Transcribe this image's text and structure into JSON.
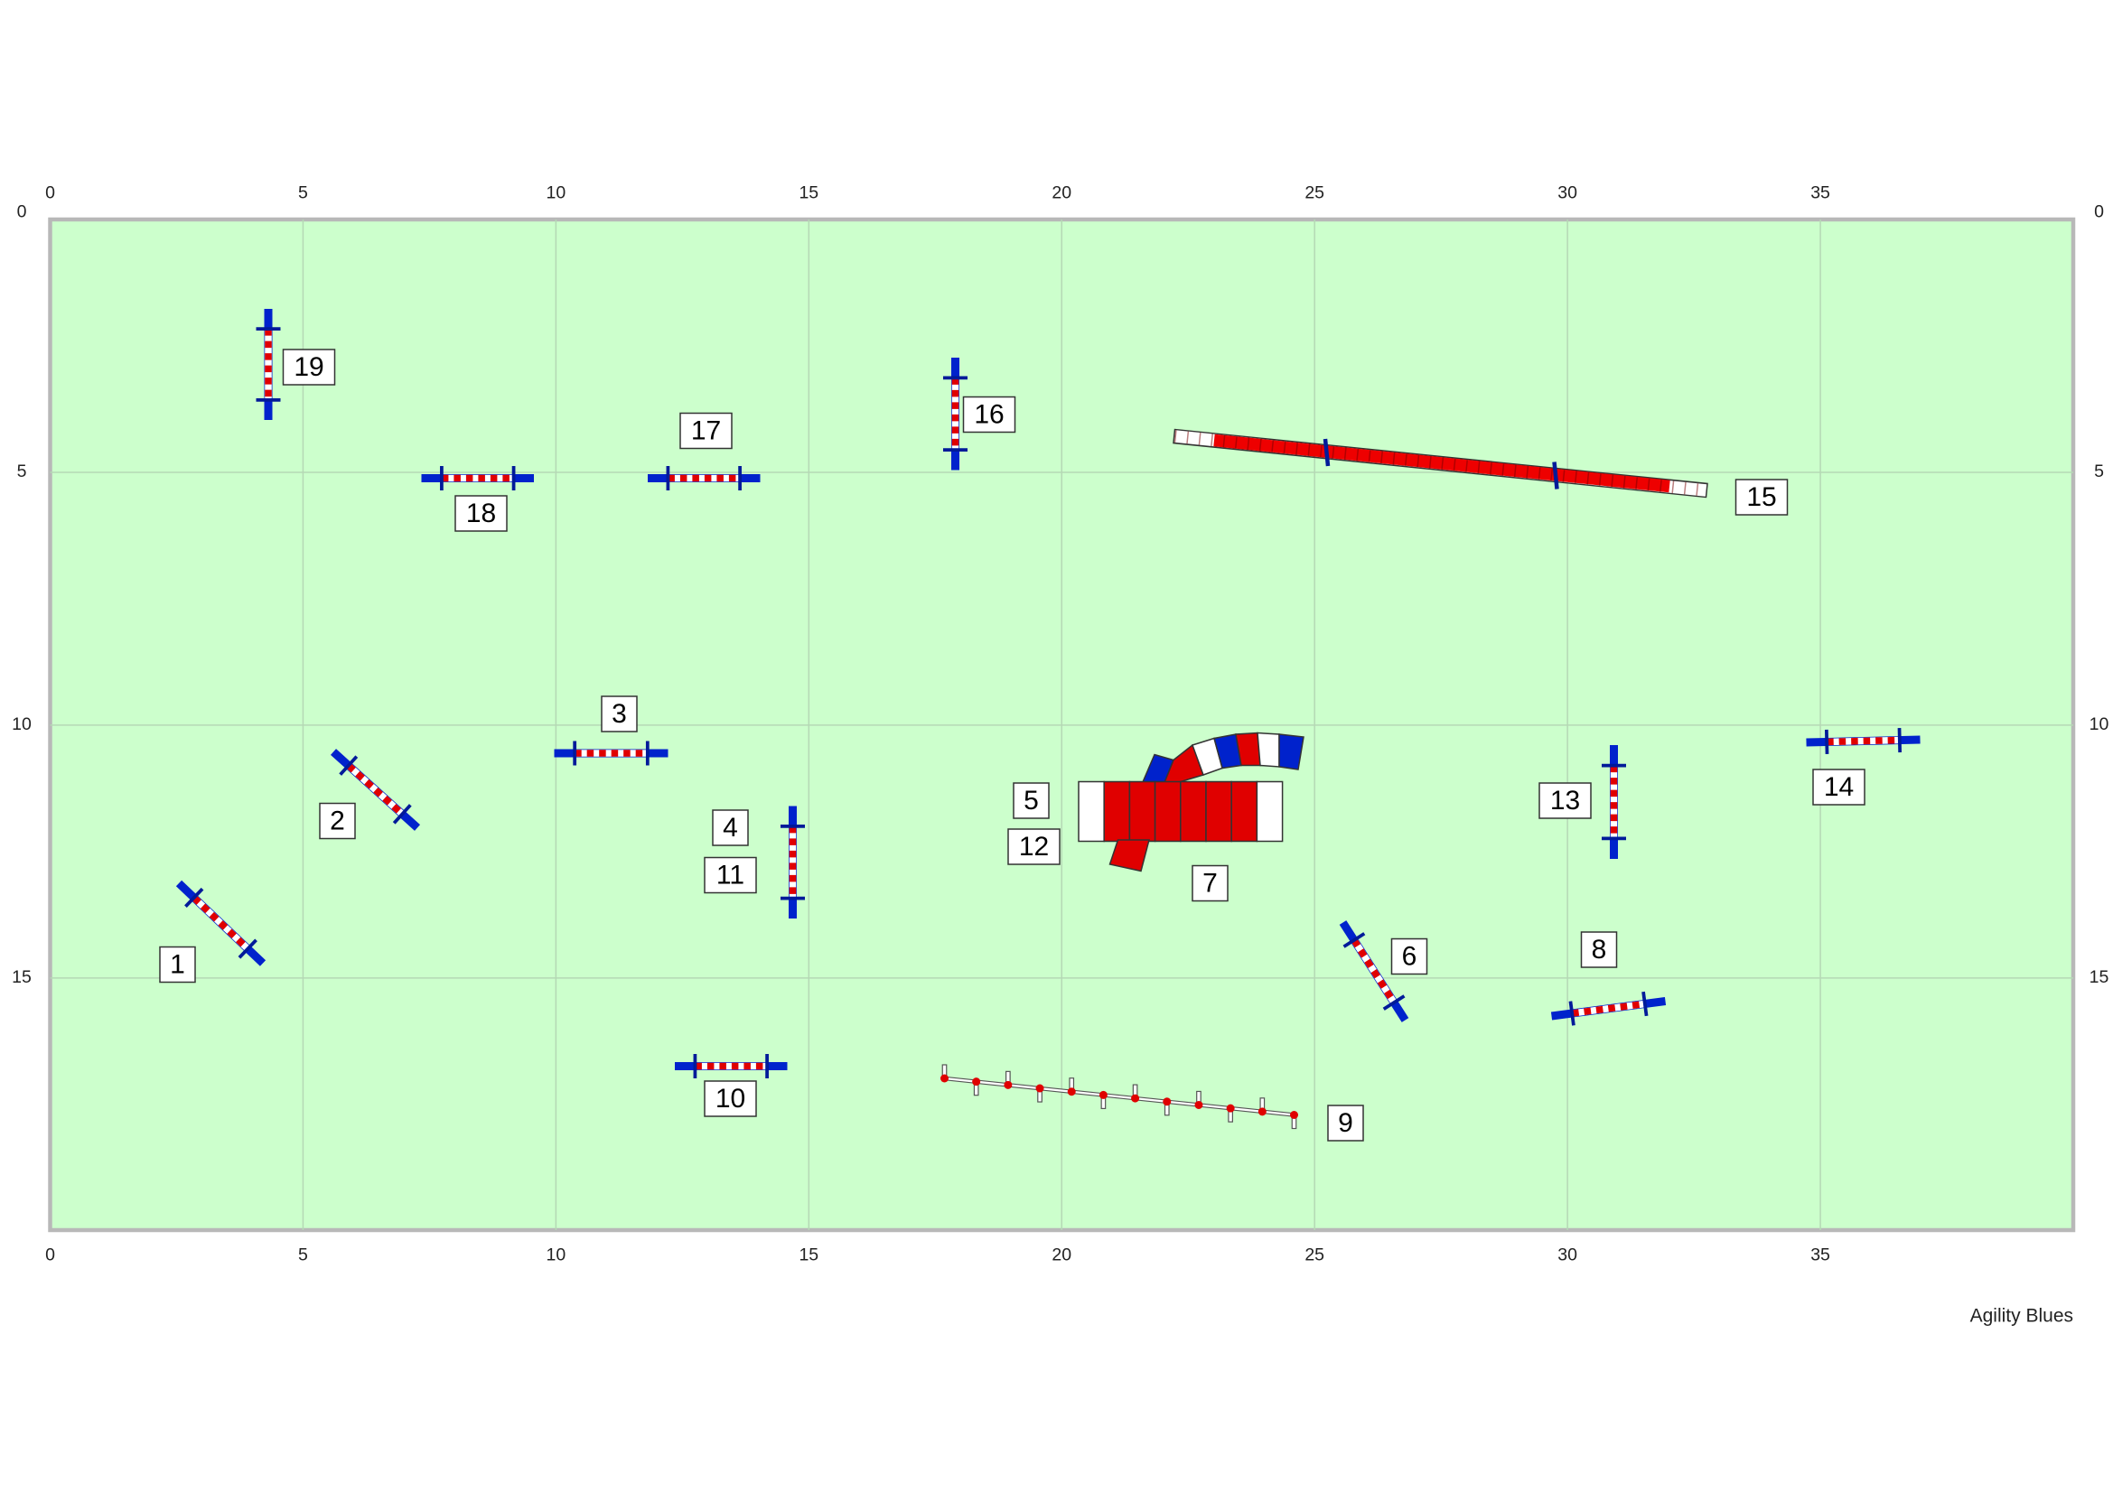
{
  "xticks": [
    0,
    5,
    10,
    15,
    20,
    25,
    30,
    35
  ],
  "yticks": [
    0,
    5,
    10,
    15
  ],
  "labels": [
    "1",
    "2",
    "3",
    "4",
    "5",
    "6",
    "7",
    "8",
    "9",
    "10",
    "11",
    "12",
    "13",
    "14",
    "15",
    "16",
    "17",
    "18",
    "19"
  ],
  "footer": "Agility Blues"
}
